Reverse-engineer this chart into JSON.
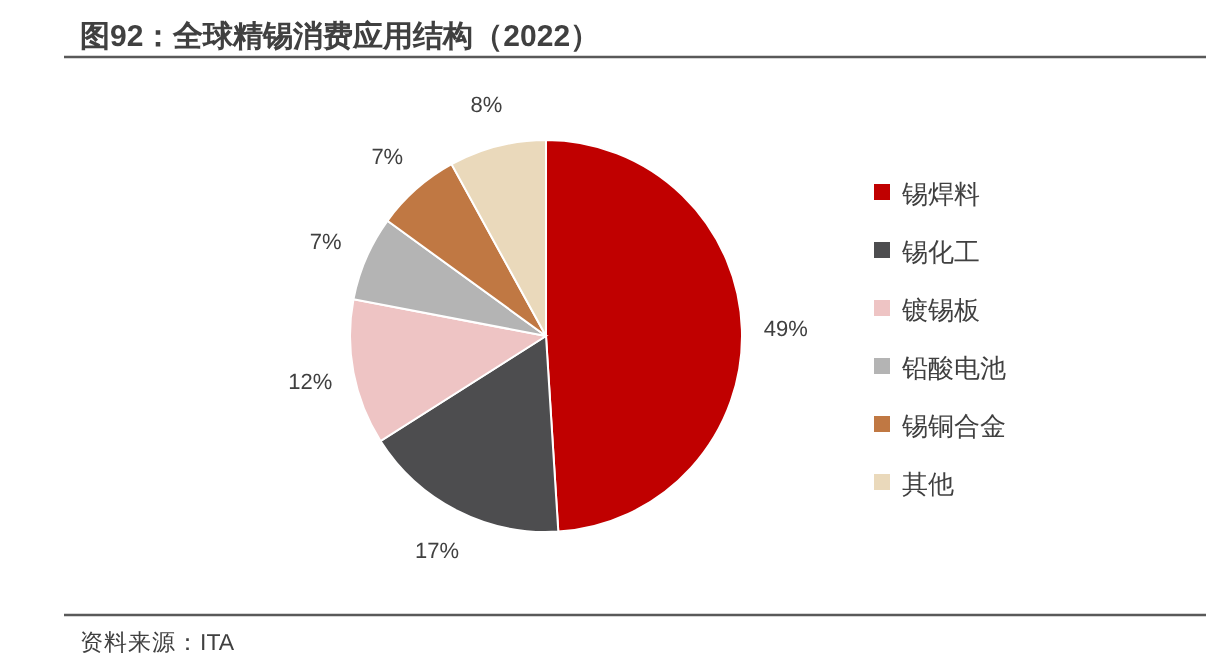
{
  "chart_data": {
    "type": "pie",
    "title": "图92：全球精锡消费应用结构（2022）",
    "categories": [
      "锡焊料",
      "锡化工",
      "镀锡板",
      "铅酸电池",
      "锡铜合金",
      "其他"
    ],
    "values": [
      49,
      17,
      12,
      7,
      7,
      8
    ],
    "colors": [
      "#c00000",
      "#4d4d4f",
      "#eec4c4",
      "#b4b4b4",
      "#c07843",
      "#ead9bb"
    ],
    "value_labels": [
      "49%",
      "17%",
      "12%",
      "7%",
      "7%",
      "8%"
    ],
    "legend": "right",
    "annotations": [
      "资料来源：ITA"
    ]
  }
}
